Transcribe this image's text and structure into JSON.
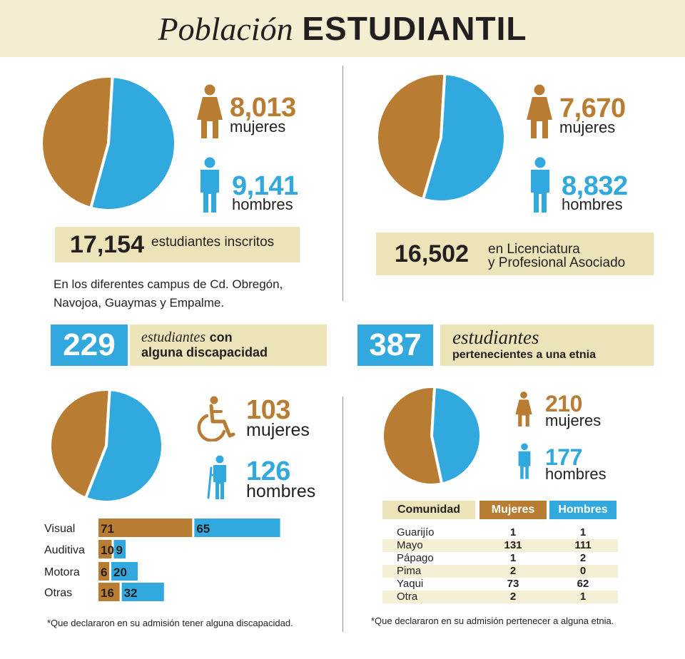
{
  "header": {
    "title_italic": "Población",
    "title_bold": "ESTUDIANTIL"
  },
  "colors": {
    "women": "#b97c33",
    "men": "#31a9de",
    "beige": "#ede3b8",
    "header_bg": "#f3edd2"
  },
  "icons": {
    "woman": "woman-icon",
    "man": "man-icon",
    "wheelchair": "wheelchair-icon",
    "crutch": "crutch-man-icon"
  },
  "panel_total": {
    "women_count": "8,013",
    "women_label": "mujeres",
    "men_count": "9,141",
    "men_label": "hombres",
    "total_count": "17,154",
    "total_label": "estudiantes inscritos",
    "campus_note": "En los diferentes campus de Cd. Obregón, Navojoa, Guaymas y Empalme."
  },
  "panel_licenciatura": {
    "women_count": "7,670",
    "women_label": "mujeres",
    "men_count": "8,832",
    "men_label": "hombres",
    "total_count": "16,502",
    "total_label_line1": "en Licenciatura",
    "total_label_line2": "y Profesional Asociado"
  },
  "panel_discapacidad": {
    "count": "229",
    "label_italic": "estudiantes",
    "label_bold1": "con",
    "label_bold2": "alguna discapacidad",
    "women_count": "103",
    "women_label": "mujeres",
    "men_count": "126",
    "men_label": "hombres",
    "footnote": "*Que declararon en su admisión tener alguna discapacidad."
  },
  "panel_etnia": {
    "count": "387",
    "label_italic": "estudiantes",
    "label_bold": "pertenecientes a una etnia",
    "women_count": "210",
    "women_label": "mujeres",
    "men_count": "177",
    "men_label": "hombres",
    "table_headers": [
      "Comunidad",
      "Mujeres",
      "Hombres"
    ],
    "table_rows": [
      {
        "community": "Guarijío",
        "women": "1",
        "men": "1"
      },
      {
        "community": "Mayo",
        "women": "131",
        "men": "111"
      },
      {
        "community": "Pápago",
        "women": "1",
        "men": "2"
      },
      {
        "community": "Pima",
        "women": "2",
        "men": "0"
      },
      {
        "community": "Yaqui",
        "women": "73",
        "men": "62"
      },
      {
        "community": "Otra",
        "women": "2",
        "men": "1"
      }
    ],
    "footnote": "*Que declararon en su admisión pertenecer a alguna etnia."
  },
  "chart_data": [
    {
      "type": "pie",
      "categories": [
        "mujeres",
        "hombres"
      ],
      "values": [
        8013,
        9141
      ]
    },
    {
      "type": "pie",
      "categories": [
        "mujeres",
        "hombres"
      ],
      "values": [
        7670,
        8832
      ]
    },
    {
      "type": "pie",
      "categories": [
        "mujeres",
        "hombres"
      ],
      "values": [
        103,
        126
      ]
    },
    {
      "type": "pie",
      "categories": [
        "mujeres",
        "hombres"
      ],
      "values": [
        210,
        177
      ]
    },
    {
      "type": "bar",
      "categories": [
        "Visual",
        "Auditiva",
        "Motora",
        "Otras"
      ],
      "series": [
        {
          "name": "mujeres",
          "values": [
            71,
            10,
            6,
            16
          ]
        },
        {
          "name": "hombres",
          "values": [
            65,
            9,
            20,
            32
          ]
        }
      ]
    }
  ]
}
